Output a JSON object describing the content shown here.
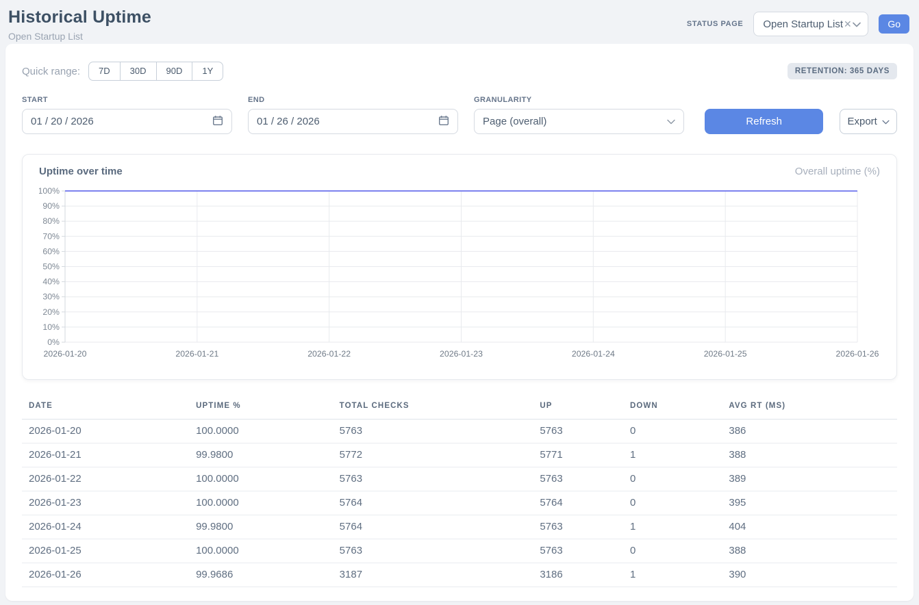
{
  "header": {
    "title": "Historical Uptime",
    "subtitle": "Open Startup List",
    "status_page": {
      "label": "STATUS PAGE",
      "selected": "Open Startup List",
      "clear_icon": "✕",
      "go_label": "Go"
    }
  },
  "controls": {
    "quick_range_label": "Quick range:",
    "quick_ranges": [
      "7D",
      "30D",
      "90D",
      "1Y"
    ],
    "retention_badge": "RETENTION: 365 DAYS",
    "start": {
      "label": "START",
      "value": "01 / 20 / 2026"
    },
    "end": {
      "label": "END",
      "value": "01 / 26 / 2026"
    },
    "granularity": {
      "label": "GRANULARITY",
      "selected": "Page (overall)"
    },
    "refresh_label": "Refresh",
    "export_label": "Export"
  },
  "chart": {
    "title": "Uptime over time",
    "legend": "Overall uptime (%)"
  },
  "chart_data": {
    "type": "line",
    "title": "Uptime over time",
    "x": [
      "2026-01-20",
      "2026-01-21",
      "2026-01-22",
      "2026-01-23",
      "2026-01-24",
      "2026-01-25",
      "2026-01-26"
    ],
    "series": [
      {
        "name": "Overall uptime (%)",
        "values": [
          100.0,
          99.98,
          100.0,
          100.0,
          99.98,
          100.0,
          99.9686
        ]
      }
    ],
    "ylim": [
      0,
      100
    ],
    "y_ticks": [
      0,
      10,
      20,
      30,
      40,
      50,
      60,
      70,
      80,
      90,
      100
    ],
    "y_tick_suffix": "%",
    "grid": true,
    "legend_position": "top-right",
    "line_color": "#7c82ef"
  },
  "table": {
    "columns": [
      "DATE",
      "UPTIME %",
      "TOTAL CHECKS",
      "UP",
      "DOWN",
      "AVG RT (MS)"
    ],
    "rows": [
      [
        "2026-01-20",
        "100.0000",
        "5763",
        "5763",
        "0",
        "386"
      ],
      [
        "2026-01-21",
        "99.9800",
        "5772",
        "5771",
        "1",
        "388"
      ],
      [
        "2026-01-22",
        "100.0000",
        "5763",
        "5763",
        "0",
        "389"
      ],
      [
        "2026-01-23",
        "100.0000",
        "5764",
        "5764",
        "0",
        "395"
      ],
      [
        "2026-01-24",
        "99.9800",
        "5764",
        "5763",
        "1",
        "404"
      ],
      [
        "2026-01-25",
        "100.0000",
        "5763",
        "5763",
        "0",
        "388"
      ],
      [
        "2026-01-26",
        "99.9686",
        "3187",
        "3186",
        "1",
        "390"
      ]
    ]
  },
  "colors": {
    "accent_blue": "#5b87e4",
    "chart_line": "#7c82ef",
    "page_background": "#f1f3f6",
    "badge_background": "#e4e8ee",
    "grid_line": "#e8eaee"
  }
}
